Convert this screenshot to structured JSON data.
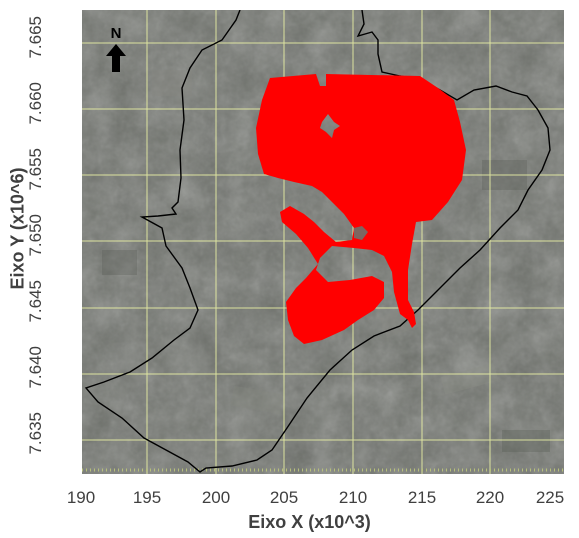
{
  "map": {
    "north_label": "N",
    "x_axis": {
      "title": "Eixo X (x10^3)",
      "ticks": [
        "190",
        "195",
        "200",
        "205",
        "210",
        "215",
        "220",
        "225"
      ]
    },
    "y_axis": {
      "title": "Eixo Y (x10^6)",
      "ticks": [
        "7.665",
        "7.660",
        "7.655",
        "7.650",
        "7.645",
        "7.640",
        "7.635"
      ]
    },
    "colors": {
      "highlighted_area": "#ff0000",
      "boundary_line": "#000000",
      "grid": "#f0f5a8",
      "imagery_base": "#6e716b"
    }
  }
}
